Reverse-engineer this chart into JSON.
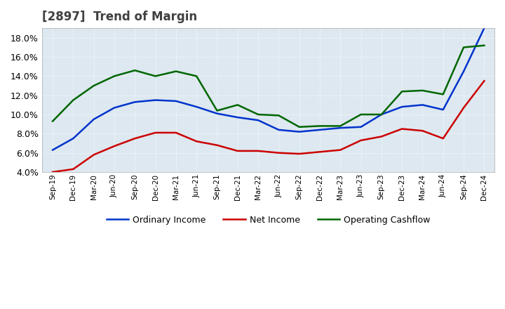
{
  "title": "[2897]  Trend of Margin",
  "title_color": "#404040",
  "background_color": "#ffffff",
  "plot_background": "#dde8f0",
  "grid_color": "#ffffff",
  "grid_linestyle": "dotted",
  "ylim": [
    0.04,
    0.19
  ],
  "yticks": [
    0.04,
    0.06,
    0.08,
    0.1,
    0.12,
    0.14,
    0.16,
    0.18
  ],
  "x_labels": [
    "Sep-19",
    "Dec-19",
    "Mar-20",
    "Jun-20",
    "Sep-20",
    "Dec-20",
    "Mar-21",
    "Jun-21",
    "Sep-21",
    "Dec-21",
    "Mar-22",
    "Jun-22",
    "Sep-22",
    "Dec-22",
    "Mar-23",
    "Jun-23",
    "Sep-23",
    "Dec-23",
    "Mar-24",
    "Jun-24",
    "Sep-24",
    "Dec-24"
  ],
  "ordinary_income": [
    0.063,
    0.075,
    0.095,
    0.107,
    0.113,
    0.115,
    0.114,
    0.108,
    0.101,
    0.097,
    0.094,
    0.084,
    0.082,
    0.084,
    0.086,
    0.087,
    0.1,
    0.108,
    0.11,
    0.105,
    0.145,
    0.19
  ],
  "net_income": [
    0.04,
    0.043,
    0.058,
    0.067,
    0.075,
    0.081,
    0.081,
    0.072,
    0.068,
    0.062,
    0.062,
    0.06,
    0.059,
    0.061,
    0.063,
    0.073,
    0.077,
    0.085,
    0.083,
    0.075,
    0.107,
    0.135
  ],
  "operating_cashflow": [
    0.093,
    0.115,
    0.13,
    0.14,
    0.146,
    0.14,
    0.145,
    0.14,
    0.104,
    0.11,
    0.1,
    0.099,
    0.087,
    0.088,
    0.088,
    0.1,
    0.1,
    0.124,
    0.125,
    0.121,
    0.17,
    0.172
  ],
  "line_colors": {
    "ordinary_income": "#0033cc",
    "net_income": "#cc0000",
    "operating_cashflow": "#006600"
  },
  "legend_labels": [
    "Ordinary Income",
    "Net Income",
    "Operating Cashflow"
  ]
}
